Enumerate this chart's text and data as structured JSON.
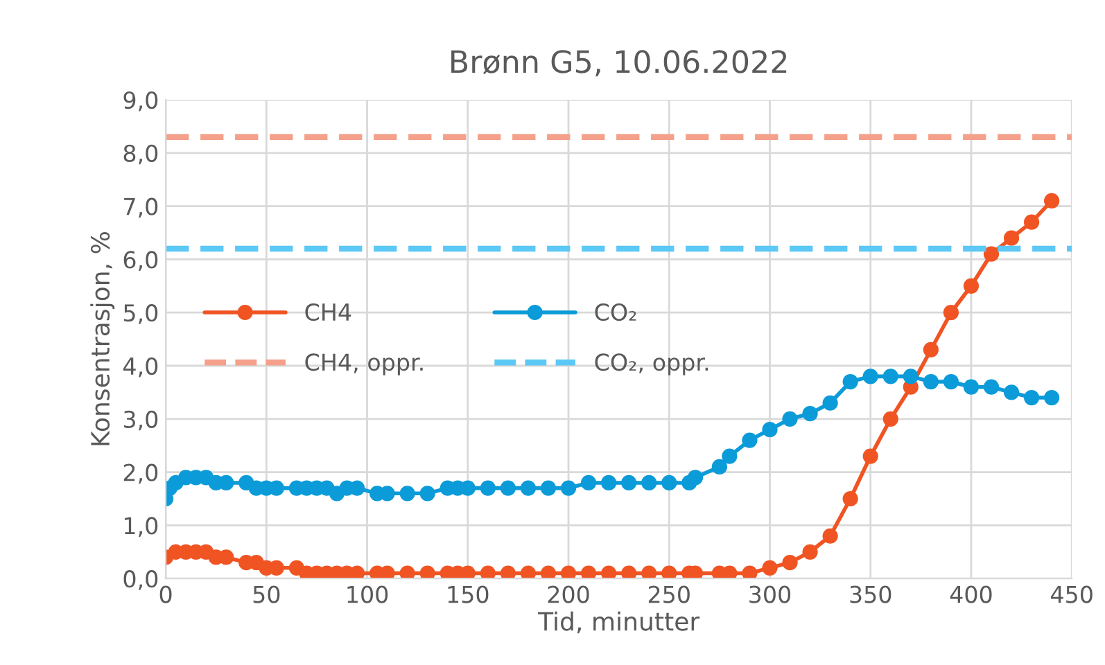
{
  "chart_data": {
    "type": "line",
    "title": "Brønn G5, 10.06.2022",
    "xlabel": "Tid, minutter",
    "ylabel": "Konsentrasjon, %",
    "xlim": [
      0,
      450
    ],
    "xticks": [
      0,
      50,
      100,
      150,
      200,
      250,
      300,
      350,
      400,
      450
    ],
    "ylim": [
      0,
      9
    ],
    "yticks": [
      {
        "value": 0,
        "label": "0,0"
      },
      {
        "value": 1,
        "label": "1,0"
      },
      {
        "value": 2,
        "label": "2,0"
      },
      {
        "value": 3,
        "label": "3,0"
      },
      {
        "value": 4,
        "label": "4,0"
      },
      {
        "value": 5,
        "label": "5,0"
      },
      {
        "value": 6,
        "label": "6,0"
      },
      {
        "value": 7,
        "label": "7,0"
      },
      {
        "value": 8,
        "label": "8,0"
      },
      {
        "value": 9,
        "label": "9,0"
      }
    ],
    "x": [
      0,
      2,
      5,
      10,
      15,
      20,
      25,
      30,
      40,
      45,
      50,
      55,
      65,
      70,
      75,
      80,
      85,
      90,
      95,
      105,
      110,
      120,
      130,
      140,
      145,
      150,
      160,
      170,
      180,
      190,
      200,
      210,
      220,
      230,
      240,
      250,
      260,
      263,
      275,
      280,
      290,
      300,
      310,
      320,
      330,
      340,
      350,
      360,
      370,
      380,
      390,
      400,
      410,
      420,
      430,
      440
    ],
    "series": [
      {
        "name": "CH4",
        "color": "#f05423",
        "x": [
          0,
          5,
          10,
          15,
          20,
          25,
          30,
          40,
          45,
          50,
          55,
          65,
          70,
          75,
          80,
          85,
          90,
          95,
          105,
          110,
          120,
          130,
          140,
          145,
          150,
          160,
          170,
          180,
          190,
          200,
          210,
          220,
          230,
          240,
          250,
          260,
          263,
          275,
          280,
          290,
          300,
          310,
          320,
          330,
          340,
          350,
          360,
          370,
          380,
          390,
          400,
          410,
          420,
          430,
          440
        ],
        "values": [
          0.4,
          0.5,
          0.5,
          0.5,
          0.5,
          0.4,
          0.4,
          0.3,
          0.3,
          0.2,
          0.2,
          0.2,
          0.1,
          0.1,
          0.1,
          0.1,
          0.1,
          0.1,
          0.1,
          0.1,
          0.1,
          0.1,
          0.1,
          0.1,
          0.1,
          0.1,
          0.1,
          0.1,
          0.1,
          0.1,
          0.1,
          0.1,
          0.1,
          0.1,
          0.1,
          0.1,
          0.1,
          0.1,
          0.1,
          0.1,
          0.2,
          0.3,
          0.5,
          0.8,
          1.5,
          2.3,
          3.0,
          3.6,
          4.3,
          5.0,
          5.5,
          6.1,
          6.4,
          6.7,
          7.1
        ]
      },
      {
        "name": "CO₂",
        "color": "#0b9bd8",
        "values": [
          1.5,
          1.7,
          1.8,
          1.9,
          1.9,
          1.9,
          1.8,
          1.8,
          1.8,
          1.7,
          1.7,
          1.7,
          1.7,
          1.7,
          1.7,
          1.7,
          1.6,
          1.7,
          1.7,
          1.6,
          1.6,
          1.6,
          1.6,
          1.7,
          1.7,
          1.7,
          1.7,
          1.7,
          1.7,
          1.7,
          1.7,
          1.8,
          1.8,
          1.8,
          1.8,
          1.8,
          1.8,
          1.9,
          2.1,
          2.3,
          2.6,
          2.8,
          3.0,
          3.1,
          3.3,
          3.7,
          3.8,
          3.8,
          3.8,
          3.7,
          3.7,
          3.6,
          3.6,
          3.5,
          3.4,
          3.4
        ]
      }
    ],
    "ref_lines": [
      {
        "axis": "y",
        "value": 8.3,
        "label": "CH4, oppr.",
        "color": "#f4a08a",
        "line_style": "dashed"
      },
      {
        "axis": "y",
        "value": 6.2,
        "label": "CO₂, oppr.",
        "color": "#5bc8f5",
        "line_style": "dashed"
      }
    ],
    "marker": "circle",
    "line_style": "solid",
    "grid": true,
    "legend": "left"
  }
}
